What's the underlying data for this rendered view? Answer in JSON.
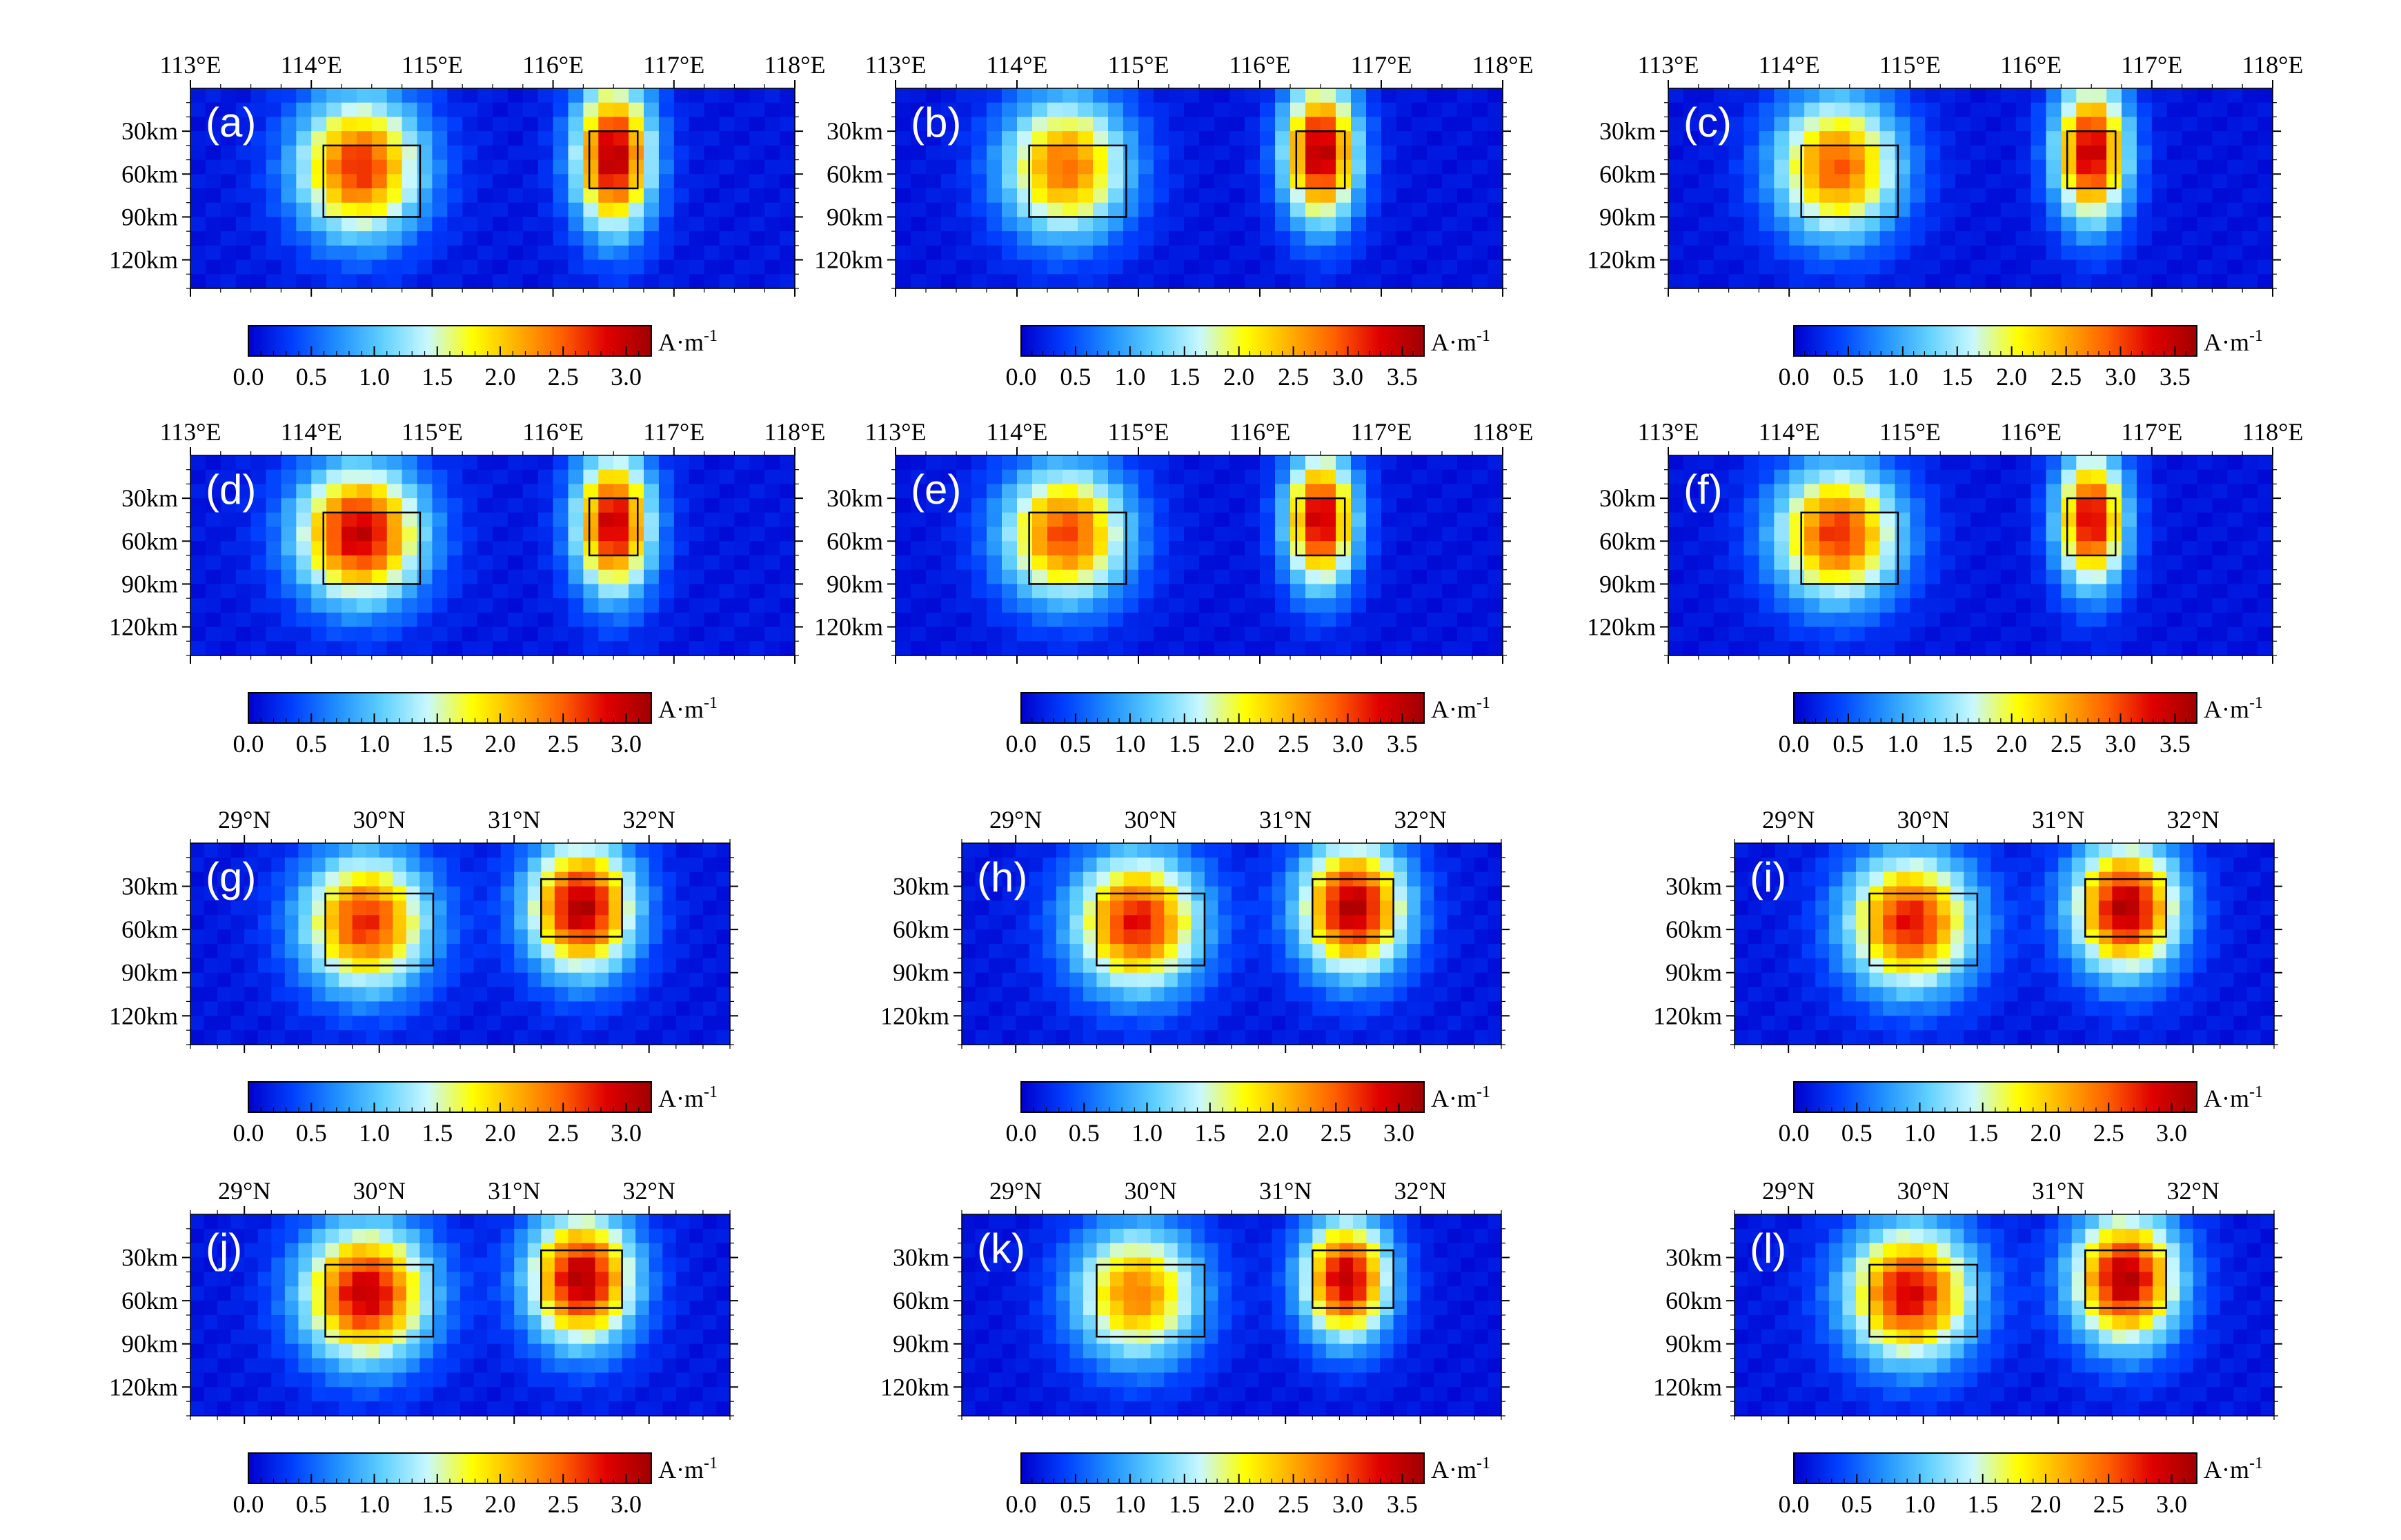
{
  "colors": {
    "colormap": [
      "#0000cc",
      "#0040ff",
      "#2090ff",
      "#60d0ff",
      "#c8f8ff",
      "#ffff00",
      "#ffb000",
      "#ff6000",
      "#e00000",
      "#a00000"
    ],
    "background_low": "#0022dd",
    "box_outline": "#000000"
  },
  "colorbar_unit": "A·m",
  "colorbar_unit_exp": "-1",
  "chart_data": [
    {
      "type": "heatmap",
      "panel_label": "(a)",
      "orientation": "E-W",
      "xticks": [
        "113°E",
        "114°E",
        "115°E",
        "116°E",
        "117°E",
        "118°E"
      ],
      "xrange": [
        113,
        118
      ],
      "yticks": [
        "30km",
        "60km",
        "90km",
        "120km"
      ],
      "yrange_km": [
        0,
        140
      ],
      "colorbar": {
        "ticks": [
          "0.0",
          "0.5",
          "1.0",
          "1.5",
          "2.0",
          "2.5",
          "3.0"
        ],
        "range": [
          0,
          3.2
        ]
      },
      "bodies": [
        {
          "center_x": 114.4,
          "center_depth_km": 55,
          "peak": 2.6,
          "spread_x": 0.55,
          "spread_depth_km": 52
        },
        {
          "center_x": 116.5,
          "center_depth_km": 48,
          "peak": 3.0,
          "spread_x": 0.34,
          "spread_depth_km": 55
        }
      ],
      "boxes": [
        {
          "x": [
            114.1,
            114.9
          ],
          "depth_km": [
            40,
            90
          ]
        },
        {
          "x": [
            116.3,
            116.7
          ],
          "depth_km": [
            30,
            70
          ]
        }
      ]
    },
    {
      "type": "heatmap",
      "panel_label": "(b)",
      "orientation": "E-W",
      "xticks": [
        "113°E",
        "114°E",
        "115°E",
        "116°E",
        "117°E",
        "118°E"
      ],
      "xrange": [
        113,
        118
      ],
      "yticks": [
        "30km",
        "60km",
        "90km",
        "120km"
      ],
      "yrange_km": [
        0,
        140
      ],
      "colorbar": {
        "ticks": [
          "0.0",
          "0.5",
          "1.0",
          "1.5",
          "2.0",
          "2.5",
          "3.0",
          "3.5"
        ],
        "range": [
          0,
          3.7
        ]
      },
      "bodies": [
        {
          "center_x": 114.4,
          "center_depth_km": 55,
          "peak": 2.7,
          "spread_x": 0.55,
          "spread_depth_km": 52
        },
        {
          "center_x": 116.5,
          "center_depth_km": 45,
          "peak": 3.5,
          "spread_x": 0.32,
          "spread_depth_km": 52
        }
      ],
      "boxes": [
        {
          "x": [
            114.1,
            114.9
          ],
          "depth_km": [
            40,
            90
          ]
        },
        {
          "x": [
            116.3,
            116.7
          ],
          "depth_km": [
            30,
            70
          ]
        }
      ]
    },
    {
      "type": "heatmap",
      "panel_label": "(c)",
      "orientation": "E-W",
      "xticks": [
        "113°E",
        "114°E",
        "115°E",
        "116°E",
        "117°E",
        "118°E"
      ],
      "xrange": [
        113,
        118
      ],
      "yticks": [
        "30km",
        "60km",
        "90km",
        "120km"
      ],
      "yrange_km": [
        0,
        140
      ],
      "colorbar": {
        "ticks": [
          "0.0",
          "0.5",
          "1.0",
          "1.5",
          "2.0",
          "2.5",
          "3.0",
          "3.5"
        ],
        "range": [
          0,
          3.7
        ]
      },
      "bodies": [
        {
          "center_x": 114.4,
          "center_depth_km": 55,
          "peak": 2.8,
          "spread_x": 0.55,
          "spread_depth_km": 52
        },
        {
          "center_x": 116.5,
          "center_depth_km": 45,
          "peak": 3.4,
          "spread_x": 0.32,
          "spread_depth_km": 52
        }
      ],
      "boxes": [
        {
          "x": [
            114.1,
            114.9
          ],
          "depth_km": [
            40,
            90
          ]
        },
        {
          "x": [
            116.3,
            116.7
          ],
          "depth_km": [
            30,
            70
          ]
        }
      ]
    },
    {
      "type": "heatmap",
      "panel_label": "(d)",
      "orientation": "E-W",
      "xticks": [
        "113°E",
        "114°E",
        "115°E",
        "116°E",
        "117°E",
        "118°E"
      ],
      "xrange": [
        113,
        118
      ],
      "yticks": [
        "30km",
        "60km",
        "90km",
        "120km"
      ],
      "yrange_km": [
        0,
        140
      ],
      "colorbar": {
        "ticks": [
          "0.0",
          "0.5",
          "1.0",
          "1.5",
          "2.0",
          "2.5",
          "3.0"
        ],
        "range": [
          0,
          3.2
        ]
      },
      "bodies": [
        {
          "center_x": 114.4,
          "center_depth_km": 55,
          "peak": 2.9,
          "spread_x": 0.55,
          "spread_depth_km": 50
        },
        {
          "center_x": 116.5,
          "center_depth_km": 48,
          "peak": 2.9,
          "spread_x": 0.34,
          "spread_depth_km": 52
        }
      ],
      "boxes": [
        {
          "x": [
            114.1,
            114.9
          ],
          "depth_km": [
            40,
            90
          ]
        },
        {
          "x": [
            116.3,
            116.7
          ],
          "depth_km": [
            30,
            70
          ]
        }
      ]
    },
    {
      "type": "heatmap",
      "panel_label": "(e)",
      "orientation": "E-W",
      "xticks": [
        "113°E",
        "114°E",
        "115°E",
        "116°E",
        "117°E",
        "118°E"
      ],
      "xrange": [
        113,
        118
      ],
      "yticks": [
        "30km",
        "60km",
        "90km",
        "120km"
      ],
      "yrange_km": [
        0,
        140
      ],
      "colorbar": {
        "ticks": [
          "0.0",
          "0.5",
          "1.0",
          "1.5",
          "2.0",
          "2.5",
          "3.0",
          "3.5"
        ],
        "range": [
          0,
          3.7
        ]
      },
      "bodies": [
        {
          "center_x": 114.4,
          "center_depth_km": 55,
          "peak": 2.9,
          "spread_x": 0.55,
          "spread_depth_km": 50
        },
        {
          "center_x": 116.5,
          "center_depth_km": 45,
          "peak": 3.4,
          "spread_x": 0.3,
          "spread_depth_km": 50
        }
      ],
      "boxes": [
        {
          "x": [
            114.1,
            114.9
          ],
          "depth_km": [
            40,
            90
          ]
        },
        {
          "x": [
            116.3,
            116.7
          ],
          "depth_km": [
            30,
            70
          ]
        }
      ]
    },
    {
      "type": "heatmap",
      "panel_label": "(f)",
      "orientation": "E-W",
      "xticks": [
        "113°E",
        "114°E",
        "115°E",
        "116°E",
        "117°E",
        "118°E"
      ],
      "xrange": [
        113,
        118
      ],
      "yticks": [
        "30km",
        "60km",
        "90km",
        "120km"
      ],
      "yrange_km": [
        0,
        140
      ],
      "colorbar": {
        "ticks": [
          "0.0",
          "0.5",
          "1.0",
          "1.5",
          "2.0",
          "2.5",
          "3.0",
          "3.5"
        ],
        "range": [
          0,
          3.7
        ]
      },
      "bodies": [
        {
          "center_x": 114.4,
          "center_depth_km": 55,
          "peak": 3.0,
          "spread_x": 0.55,
          "spread_depth_km": 50
        },
        {
          "center_x": 116.5,
          "center_depth_km": 45,
          "peak": 3.3,
          "spread_x": 0.3,
          "spread_depth_km": 50
        }
      ],
      "boxes": [
        {
          "x": [
            114.1,
            114.9
          ],
          "depth_km": [
            40,
            90
          ]
        },
        {
          "x": [
            116.3,
            116.7
          ],
          "depth_km": [
            30,
            70
          ]
        }
      ]
    },
    {
      "type": "heatmap",
      "panel_label": "(g)",
      "orientation": "S-N",
      "xticks": [
        "29°N",
        "30°N",
        "31°N",
        "32°N"
      ],
      "xrange": [
        28.6,
        32.6
      ],
      "yticks": [
        "30km",
        "60km",
        "90km",
        "120km"
      ],
      "yrange_km": [
        0,
        140
      ],
      "colorbar": {
        "ticks": [
          "0.0",
          "0.5",
          "1.0",
          "1.5",
          "2.0",
          "2.5",
          "3.0"
        ],
        "range": [
          0,
          3.2
        ]
      },
      "bodies": [
        {
          "center_x": 29.9,
          "center_depth_km": 55,
          "peak": 2.6,
          "spread_x": 0.5,
          "spread_depth_km": 50
        },
        {
          "center_x": 31.5,
          "center_depth_km": 45,
          "peak": 3.0,
          "spread_x": 0.42,
          "spread_depth_km": 48
        }
      ],
      "boxes": [
        {
          "x": [
            29.6,
            30.4
          ],
          "depth_km": [
            35,
            85
          ]
        },
        {
          "x": [
            31.2,
            31.8
          ],
          "depth_km": [
            25,
            65
          ]
        }
      ]
    },
    {
      "type": "heatmap",
      "panel_label": "(h)",
      "orientation": "S-N",
      "xticks": [
        "29°N",
        "30°N",
        "31°N",
        "32°N"
      ],
      "xrange": [
        28.6,
        32.6
      ],
      "yticks": [
        "30km",
        "60km",
        "90km",
        "120km"
      ],
      "yrange_km": [
        0,
        140
      ],
      "colorbar": {
        "ticks": [
          "0.0",
          "0.5",
          "1.0",
          "1.5",
          "2.0",
          "2.5",
          "3.0"
        ],
        "range": [
          0,
          3.2
        ]
      },
      "bodies": [
        {
          "center_x": 29.9,
          "center_depth_km": 55,
          "peak": 2.7,
          "spread_x": 0.5,
          "spread_depth_km": 50
        },
        {
          "center_x": 31.5,
          "center_depth_km": 45,
          "peak": 3.0,
          "spread_x": 0.42,
          "spread_depth_km": 48
        }
      ],
      "boxes": [
        {
          "x": [
            29.6,
            30.4
          ],
          "depth_km": [
            35,
            85
          ]
        },
        {
          "x": [
            31.2,
            31.8
          ],
          "depth_km": [
            25,
            65
          ]
        }
      ]
    },
    {
      "type": "heatmap",
      "panel_label": "(i)",
      "orientation": "S-N",
      "xticks": [
        "29°N",
        "30°N",
        "31°N",
        "32°N"
      ],
      "xrange": [
        28.6,
        32.6
      ],
      "yticks": [
        "30km",
        "60km",
        "90km",
        "120km"
      ],
      "yrange_km": [
        0,
        140
      ],
      "colorbar": {
        "ticks": [
          "0.0",
          "0.5",
          "1.0",
          "1.5",
          "2.0",
          "2.5",
          "3.0"
        ],
        "range": [
          0,
          3.2
        ]
      },
      "bodies": [
        {
          "center_x": 29.9,
          "center_depth_km": 55,
          "peak": 2.7,
          "spread_x": 0.5,
          "spread_depth_km": 50
        },
        {
          "center_x": 31.5,
          "center_depth_km": 45,
          "peak": 3.0,
          "spread_x": 0.42,
          "spread_depth_km": 48
        }
      ],
      "boxes": [
        {
          "x": [
            29.6,
            30.4
          ],
          "depth_km": [
            35,
            85
          ]
        },
        {
          "x": [
            31.2,
            31.8
          ],
          "depth_km": [
            25,
            65
          ]
        }
      ]
    },
    {
      "type": "heatmap",
      "panel_label": "(j)",
      "orientation": "S-N",
      "xticks": [
        "29°N",
        "30°N",
        "31°N",
        "32°N"
      ],
      "xrange": [
        28.6,
        32.6
      ],
      "yticks": [
        "30km",
        "60km",
        "90km",
        "120km"
      ],
      "yrange_km": [
        0,
        140
      ],
      "colorbar": {
        "ticks": [
          "0.0",
          "0.5",
          "1.0",
          "1.5",
          "2.0",
          "2.5",
          "3.0"
        ],
        "range": [
          0,
          3.2
        ]
      },
      "bodies": [
        {
          "center_x": 29.9,
          "center_depth_km": 55,
          "peak": 2.9,
          "spread_x": 0.5,
          "spread_depth_km": 50
        },
        {
          "center_x": 31.5,
          "center_depth_km": 45,
          "peak": 3.0,
          "spread_x": 0.42,
          "spread_depth_km": 48
        }
      ],
      "boxes": [
        {
          "x": [
            29.6,
            30.4
          ],
          "depth_km": [
            35,
            85
          ]
        },
        {
          "x": [
            31.2,
            31.8
          ],
          "depth_km": [
            25,
            65
          ]
        }
      ]
    },
    {
      "type": "heatmap",
      "panel_label": "(k)",
      "orientation": "S-N",
      "xticks": [
        "29°N",
        "30°N",
        "31°N",
        "32°N"
      ],
      "xrange": [
        28.6,
        32.6
      ],
      "yticks": [
        "30km",
        "60km",
        "90km",
        "120km"
      ],
      "yrange_km": [
        0,
        140
      ],
      "colorbar": {
        "ticks": [
          "0.0",
          "0.5",
          "1.0",
          "1.5",
          "2.0",
          "2.5",
          "3.0",
          "3.5"
        ],
        "range": [
          0,
          3.7
        ]
      },
      "bodies": [
        {
          "center_x": 29.9,
          "center_depth_km": 55,
          "peak": 2.6,
          "spread_x": 0.5,
          "spread_depth_km": 50
        },
        {
          "center_x": 31.45,
          "center_depth_km": 45,
          "peak": 3.4,
          "spread_x": 0.35,
          "spread_depth_km": 45
        }
      ],
      "boxes": [
        {
          "x": [
            29.6,
            30.4
          ],
          "depth_km": [
            35,
            85
          ]
        },
        {
          "x": [
            31.2,
            31.8
          ],
          "depth_km": [
            25,
            65
          ]
        }
      ]
    },
    {
      "type": "heatmap",
      "panel_label": "(l)",
      "orientation": "S-N",
      "xticks": [
        "29°N",
        "30°N",
        "31°N",
        "32°N"
      ],
      "xrange": [
        28.6,
        32.6
      ],
      "yticks": [
        "30km",
        "60km",
        "90km",
        "120km"
      ],
      "yrange_km": [
        0,
        140
      ],
      "colorbar": {
        "ticks": [
          "0.0",
          "0.5",
          "1.0",
          "1.5",
          "2.0",
          "2.5",
          "3.0"
        ],
        "range": [
          0,
          3.2
        ]
      },
      "bodies": [
        {
          "center_x": 29.9,
          "center_depth_km": 55,
          "peak": 2.8,
          "spread_x": 0.5,
          "spread_depth_km": 50
        },
        {
          "center_x": 31.5,
          "center_depth_km": 45,
          "peak": 3.0,
          "spread_x": 0.42,
          "spread_depth_km": 48
        }
      ],
      "boxes": [
        {
          "x": [
            29.6,
            30.4
          ],
          "depth_km": [
            35,
            85
          ]
        },
        {
          "x": [
            31.2,
            31.8
          ],
          "depth_km": [
            25,
            65
          ]
        }
      ]
    }
  ]
}
